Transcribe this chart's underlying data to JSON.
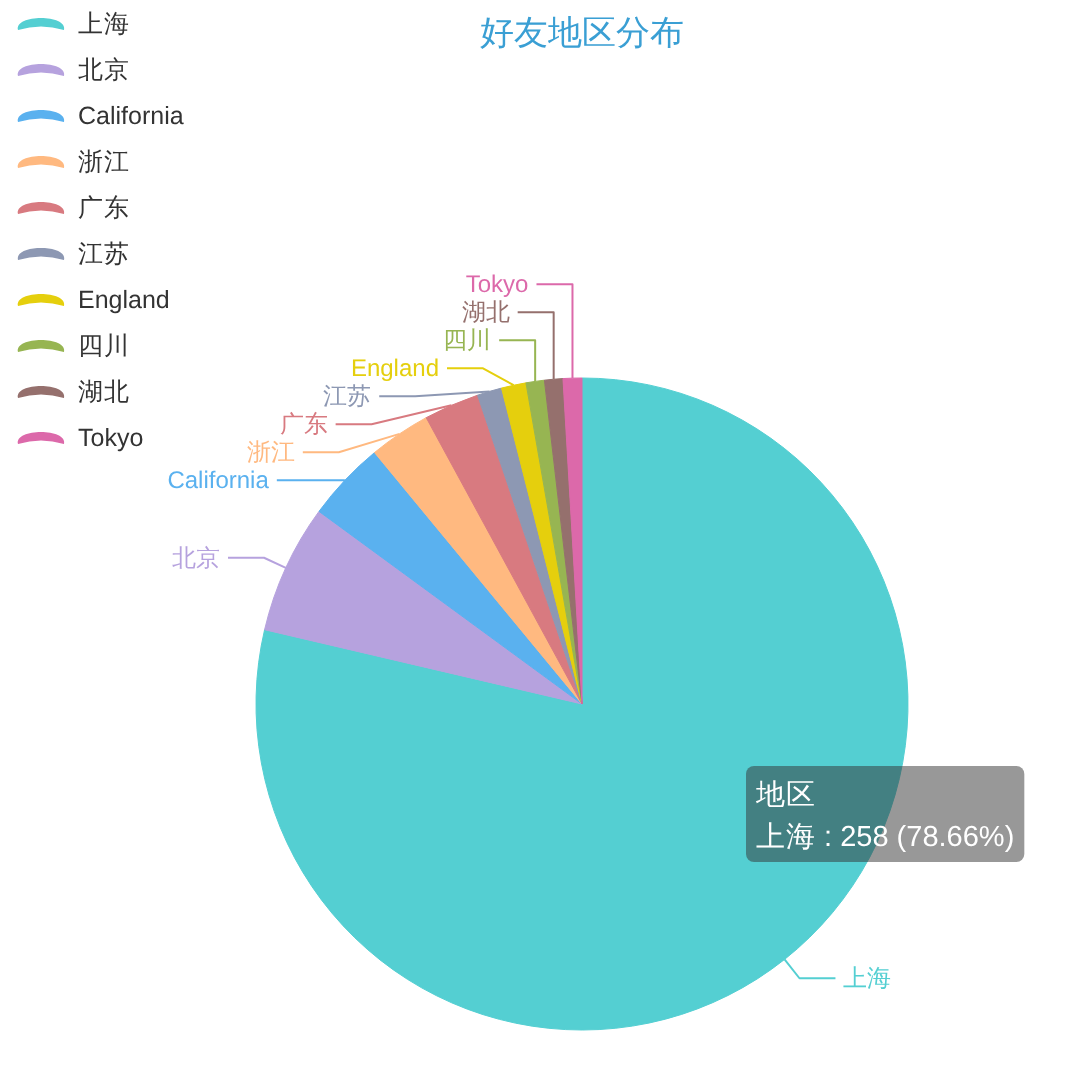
{
  "chart_data": {
    "type": "pie",
    "title": "好友地区分布",
    "categories": [
      "上海",
      "北京",
      "California",
      "浙江",
      "广东",
      "江苏",
      "England",
      "四川",
      "湖北",
      "Tokyo"
    ],
    "values": [
      78.66,
      6.4,
      3.96,
      3.05,
      2.74,
      1.22,
      1.22,
      0.91,
      0.91,
      0.93
    ],
    "colors": [
      "#54cfd2",
      "#b6a2de",
      "#5ab1ef",
      "#ffb980",
      "#d87a80",
      "#8d98b3",
      "#e5cf0d",
      "#97b552",
      "#95706d",
      "#dc69aa"
    ],
    "legend": "top left",
    "annotations": [
      "地区",
      "上海 : 258 (78.66%)"
    ]
  }
}
